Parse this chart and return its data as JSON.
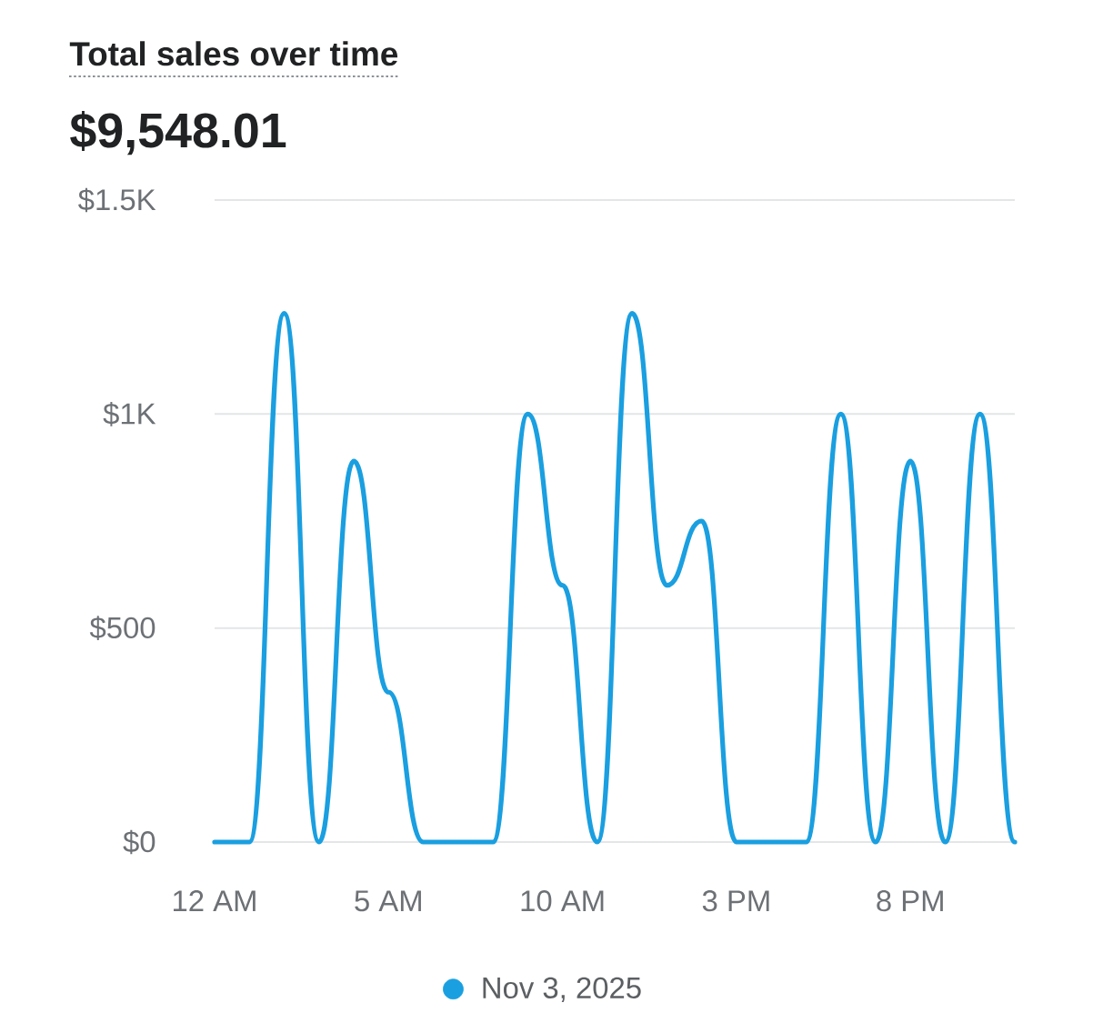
{
  "chart_data": {
    "type": "line",
    "title": "Total sales over time",
    "subtitle": "$9,548.01",
    "x": [
      "2025-11-03T00:00",
      "2025-11-03T01:00",
      "2025-11-03T02:00",
      "2025-11-03T03:00",
      "2025-11-03T04:00",
      "2025-11-03T05:00",
      "2025-11-03T06:00",
      "2025-11-03T07:00",
      "2025-11-03T08:00",
      "2025-11-03T09:00",
      "2025-11-03T10:00",
      "2025-11-03T11:00",
      "2025-11-03T12:00",
      "2025-11-03T13:00",
      "2025-11-03T14:00",
      "2025-11-03T15:00",
      "2025-11-03T16:00",
      "2025-11-03T17:00",
      "2025-11-03T18:00",
      "2025-11-03T19:00",
      "2025-11-03T20:00",
      "2025-11-03T21:00",
      "2025-11-03T22:00",
      "2025-11-03T23:00"
    ],
    "series": [
      {
        "name": "Nov 3, 2025",
        "color": "#1a9fe0",
        "values": [
          0,
          0,
          1235,
          0,
          890,
          350,
          0,
          0,
          0,
          1000,
          600,
          0,
          1235,
          600,
          750,
          0,
          0,
          0,
          1000,
          0,
          890,
          0,
          1000,
          0
        ]
      }
    ],
    "xlim": [
      "2025-11-03T00:00",
      "2025-11-03T23:00"
    ],
    "xticks": [
      {
        "value": "2025-11-03T00:00",
        "label": "12 AM"
      },
      {
        "value": "2025-11-03T05:00",
        "label": "5 AM"
      },
      {
        "value": "2025-11-03T10:00",
        "label": "10 AM"
      },
      {
        "value": "2025-11-03T15:00",
        "label": "3 PM"
      },
      {
        "value": "2025-11-03T20:00",
        "label": "8 PM"
      }
    ],
    "ylim": [
      0,
      1500
    ],
    "yticks": [
      {
        "value": 0,
        "label": "$0"
      },
      {
        "value": 500,
        "label": "$500"
      },
      {
        "value": 1000,
        "label": "$1K"
      },
      {
        "value": 1500,
        "label": "$1.5K"
      }
    ],
    "grid": "y",
    "legend": "bottom",
    "marker": "none",
    "line_style": "solid"
  }
}
